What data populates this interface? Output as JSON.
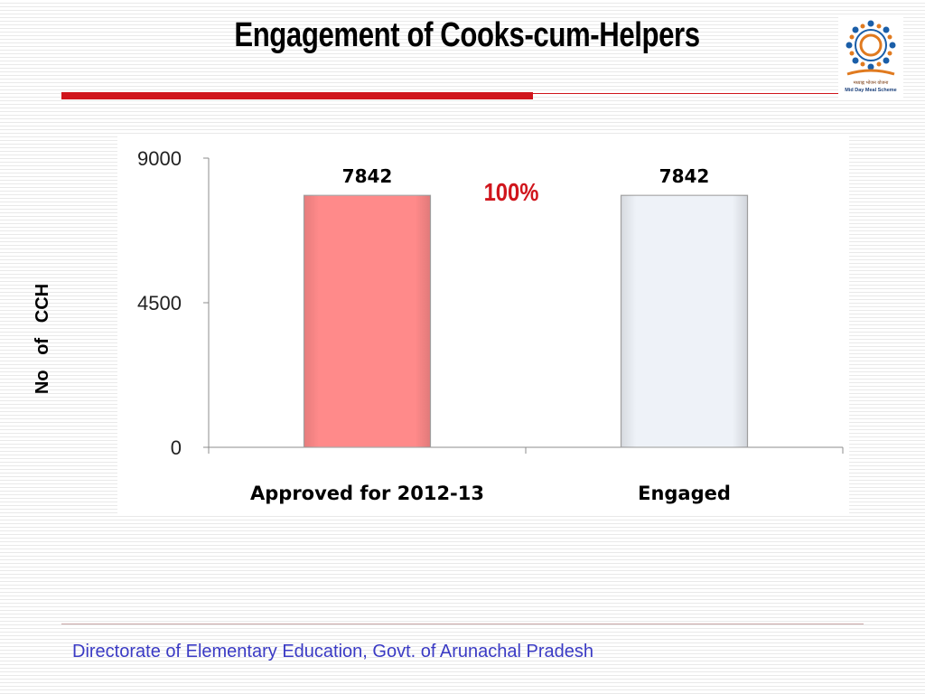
{
  "slide": {
    "title": "Engagement of Cooks-cum-Helpers",
    "footer": "Directorate of Elementary Education, Govt. of Arunachal Pradesh",
    "accent_color": "#d0151c",
    "footer_color": "#3a3ac4",
    "logo": {
      "name": "mid-day-meal-scheme-logo",
      "line1": "मध्याह्न भोजन योजना",
      "line2": "Mid Day Meal Scheme"
    }
  },
  "chart_data": {
    "type": "bar",
    "categories": [
      "Approved for 2012-13",
      "Engaged"
    ],
    "values": [
      7842,
      7842
    ],
    "data_labels": [
      "7842",
      "7842"
    ],
    "bar_colors": [
      "#ff8a8a",
      "#eef2f8"
    ],
    "ylabel": "No   of   CCH",
    "ylim": [
      0,
      9000
    ],
    "yticks": [
      "0",
      "4500",
      "9000"
    ],
    "annotation": {
      "text": "100%",
      "color": "#d0151c"
    },
    "grid": false
  }
}
